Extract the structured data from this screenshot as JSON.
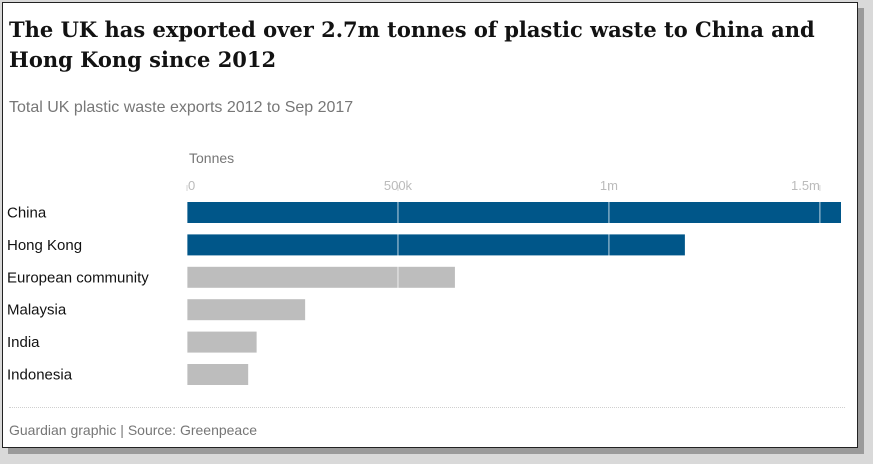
{
  "title": "The UK has exported over 2.7m tonnes of plastic waste to China and Hong Kong since 2012",
  "subtitle": "Total UK plastic waste exports 2012 to Sep 2017",
  "source": "Guardian graphic | Source: Greenpeace",
  "chart_data": {
    "type": "bar",
    "orientation": "horizontal",
    "unit_label": "Tonnes",
    "categories": [
      "China",
      "Hong Kong",
      "European community",
      "Malaysia",
      "India",
      "Indonesia"
    ],
    "values": [
      1550000,
      1180000,
      635000,
      280000,
      165000,
      145000
    ],
    "xlim": [
      0,
      1550000
    ],
    "ticks": [
      {
        "value": 0,
        "label": "0"
      },
      {
        "value": 500000,
        "label": "500k"
      },
      {
        "value": 1000000,
        "label": "1m"
      },
      {
        "value": 1500000,
        "label": "1.5m"
      }
    ],
    "highlight_color": "#005689",
    "other_color": "#bdbdbd",
    "highlighted": [
      "China",
      "Hong Kong"
    ],
    "grid": true
  }
}
